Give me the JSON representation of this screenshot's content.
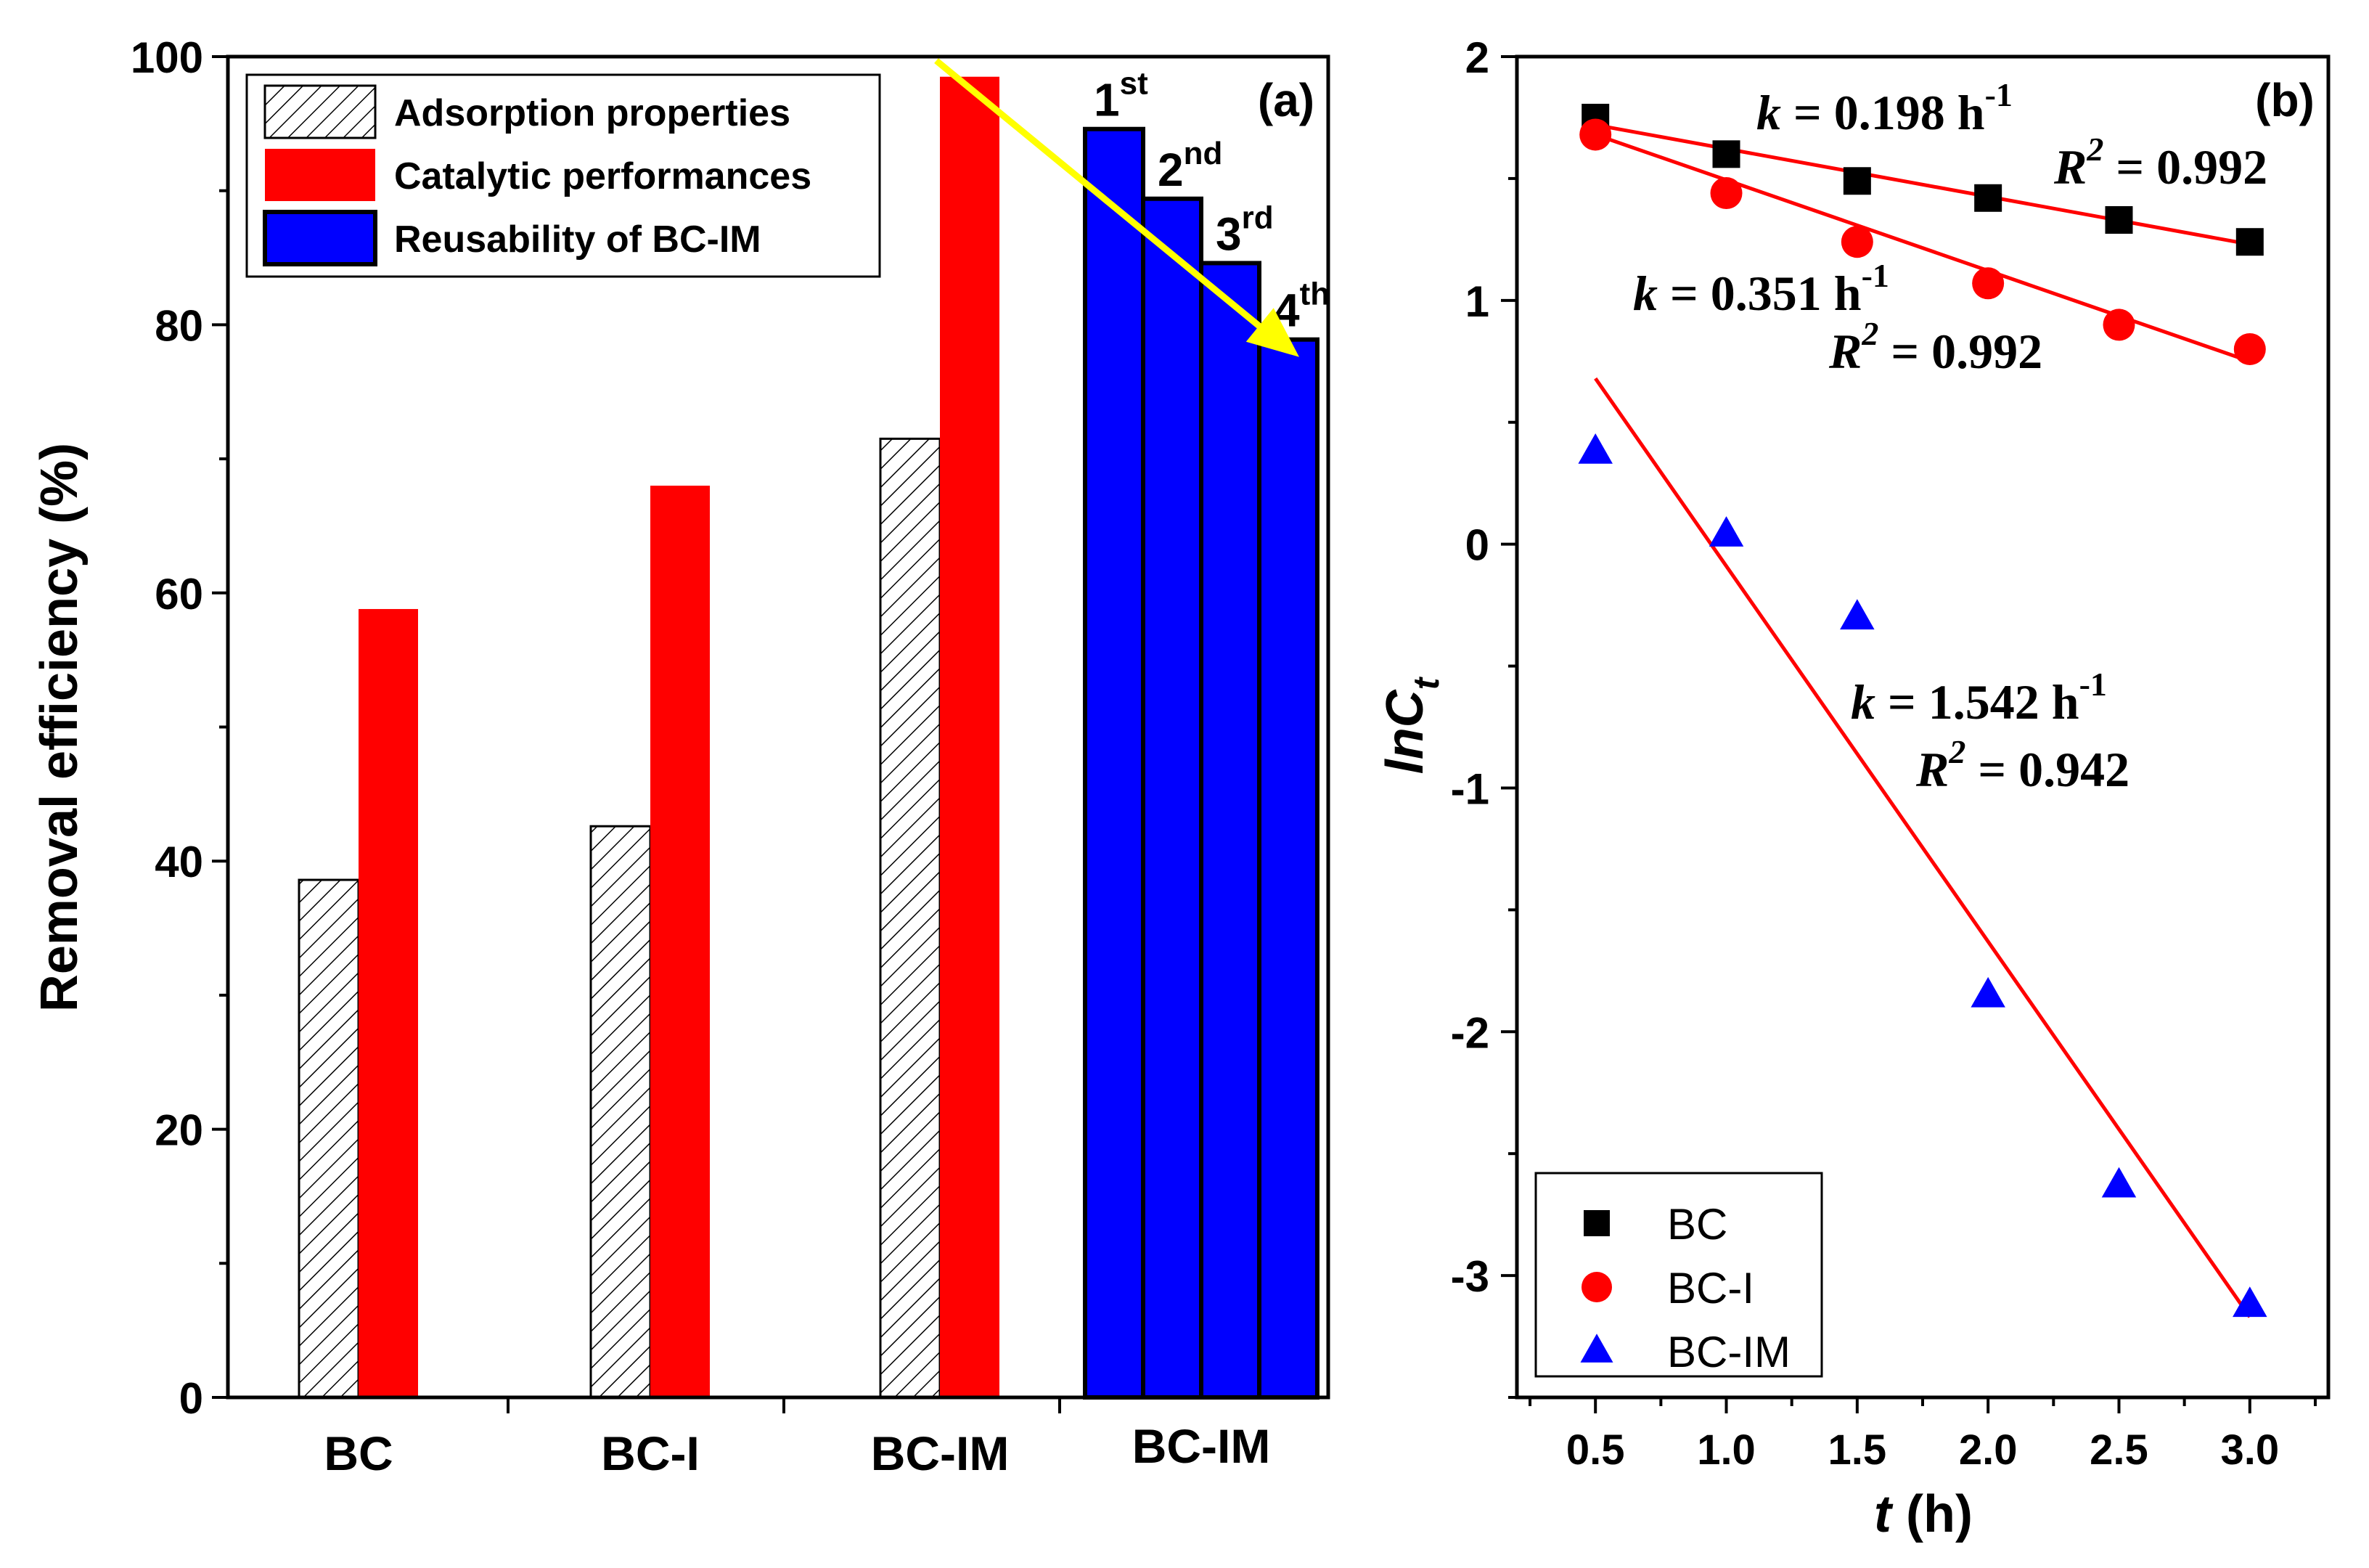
{
  "chart_data": [
    {
      "id": "a",
      "type": "bar",
      "panel_label": "(a)",
      "ylabel": "Removal efficiency (%)",
      "ylim": [
        0,
        100
      ],
      "yticks": [
        0,
        20,
        40,
        60,
        80,
        100
      ],
      "groups": [
        {
          "label": "BC",
          "adsorption": 38.6,
          "catalytic": 58.8
        },
        {
          "label": "BC-I",
          "adsorption": 42.6,
          "catalytic": 68.0
        },
        {
          "label": "BC-IM",
          "adsorption": 71.5,
          "catalytic": 98.5
        }
      ],
      "reuse_group_label": "BC-IM",
      "reuse": [
        {
          "cycle": "1",
          "suffix": "st",
          "value": 94.6
        },
        {
          "cycle": "2",
          "suffix": "nd",
          "value": 89.4
        },
        {
          "cycle": "3",
          "suffix": "rd",
          "value": 84.6
        },
        {
          "cycle": "4",
          "suffix": "th",
          "value": 78.9
        }
      ],
      "trend_arrow": {
        "from": [
          98.5,
          99.7
        ],
        "to_value": 77.6,
        "color": "#ffff00"
      },
      "legend": [
        {
          "label": "Adsorption properties",
          "style": "hatch"
        },
        {
          "label": "Catalytic performances",
          "color": "#ff0000"
        },
        {
          "label": "Reusability of BC-IM",
          "color": "#0000ff"
        }
      ],
      "colors": {
        "catalytic": "#ff0000",
        "reuse": "#0000ff",
        "hatch": "#000000"
      }
    },
    {
      "id": "b",
      "type": "scatter",
      "panel_label": "(b)",
      "xlabel": "t (h)",
      "ylabel": "lnCt",
      "xlim": [
        0.2,
        3.3
      ],
      "ylim": [
        -3.5,
        2
      ],
      "xticks": [
        "0.5",
        "1.0",
        "1.5",
        "2.0",
        "2.5",
        "3.0"
      ],
      "yticks": [
        "-3",
        "-2",
        "-1",
        "0",
        "1",
        "2"
      ],
      "series": [
        {
          "name": "BC",
          "marker": "square",
          "color": "#000000",
          "x": [
            0.5,
            1.0,
            1.5,
            2.0,
            2.5,
            3.0
          ],
          "y": [
            1.75,
            1.6,
            1.49,
            1.42,
            1.33,
            1.24
          ],
          "fit_line": [
            [
              0.5,
              1.72
            ],
            [
              3.0,
              1.23
            ]
          ],
          "annotation": {
            "k": "0.198",
            "r2": "0.992"
          }
        },
        {
          "name": "BC-I",
          "marker": "circle",
          "color": "#ff0000",
          "x": [
            0.5,
            1.0,
            1.5,
            2.0,
            2.5,
            3.0
          ],
          "y": [
            1.68,
            1.44,
            1.24,
            1.07,
            0.9,
            0.8
          ],
          "fit_line": [
            [
              0.5,
              1.68
            ],
            [
              3.0,
              0.75
            ]
          ],
          "annotation": {
            "k": "0.351",
            "r2": "0.992"
          }
        },
        {
          "name": "BC-IM",
          "marker": "triangle",
          "color": "#0000ff",
          "x": [
            0.5,
            1.0,
            1.5,
            2.0,
            2.5,
            3.0
          ],
          "y": [
            0.38,
            0.04,
            -0.3,
            -1.85,
            -2.63,
            -3.12
          ],
          "fit_line": [
            [
              0.5,
              0.68
            ],
            [
              3.0,
              -3.17
            ]
          ],
          "annotation": {
            "k": "1.542",
            "r2": "0.942"
          }
        }
      ],
      "fit_line_color": "#ff0000",
      "annotation_text": {
        "k_prefix": "k",
        "eq": " = ",
        "unit": " h",
        "unit_exp": "-1",
        "r_prefix": "R",
        "r_exp": "2"
      }
    }
  ]
}
